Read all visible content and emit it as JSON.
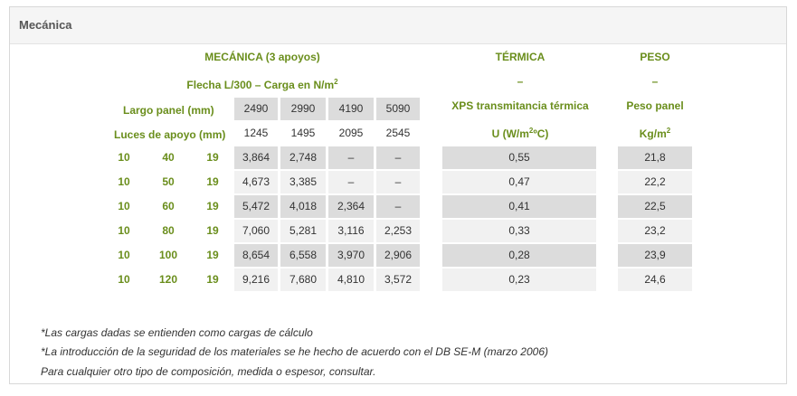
{
  "panel": {
    "title": "Mecánica"
  },
  "headers": {
    "mecanica": "MECÁNICA (3 apoyos)",
    "termica": "TÉRMICA",
    "peso": "PESO",
    "flecha": "Flecha L/300 – Carga en N/m",
    "flecha_sup": "2",
    "termica_dash": "–",
    "peso_dash": "–",
    "largo_panel": "Largo panel (mm)",
    "luces_apoyo": "Luces de apoyo (mm)",
    "xps": "XPS transmitancia térmica",
    "u_prefix": "U (W/m",
    "u_sup": "2",
    "u_suffix": "ºC)",
    "peso_panel": "Peso panel",
    "kg_prefix": "Kg/m",
    "kg_sup": "2"
  },
  "largo_values": [
    "2490",
    "2990",
    "4190",
    "5090"
  ],
  "luces_values": [
    "1245",
    "1495",
    "2095",
    "2545"
  ],
  "rows": [
    {
      "c1": "10",
      "c2": "40",
      "c3": "19",
      "loads": [
        "3,864",
        "2,748",
        "–",
        "–"
      ],
      "u": "0,55",
      "peso": "21,8"
    },
    {
      "c1": "10",
      "c2": "50",
      "c3": "19",
      "loads": [
        "4,673",
        "3,385",
        "–",
        "–"
      ],
      "u": "0,47",
      "peso": "22,2"
    },
    {
      "c1": "10",
      "c2": "60",
      "c3": "19",
      "loads": [
        "5,472",
        "4,018",
        "2,364",
        "–"
      ],
      "u": "0,41",
      "peso": "22,5"
    },
    {
      "c1": "10",
      "c2": "80",
      "c3": "19",
      "loads": [
        "7,060",
        "5,281",
        "3,116",
        "2,253"
      ],
      "u": "0,33",
      "peso": "23,2"
    },
    {
      "c1": "10",
      "c2": "100",
      "c3": "19",
      "loads": [
        "8,654",
        "6,558",
        "3,970",
        "2,906"
      ],
      "u": "0,28",
      "peso": "23,9"
    },
    {
      "c1": "10",
      "c2": "120",
      "c3": "19",
      "loads": [
        "9,216",
        "7,680",
        "4,810",
        "3,572"
      ],
      "u": "0,23",
      "peso": "24,6"
    }
  ],
  "notes": [
    "*Las cargas dadas se entienden como cargas de cálculo",
    "*La introducción de la seguridad de los materiales se he hecho de acuerdo con el DB SE-M (marzo 2006)",
    "Para cualquier otro tipo de composición, medida o espesor, consultar."
  ]
}
